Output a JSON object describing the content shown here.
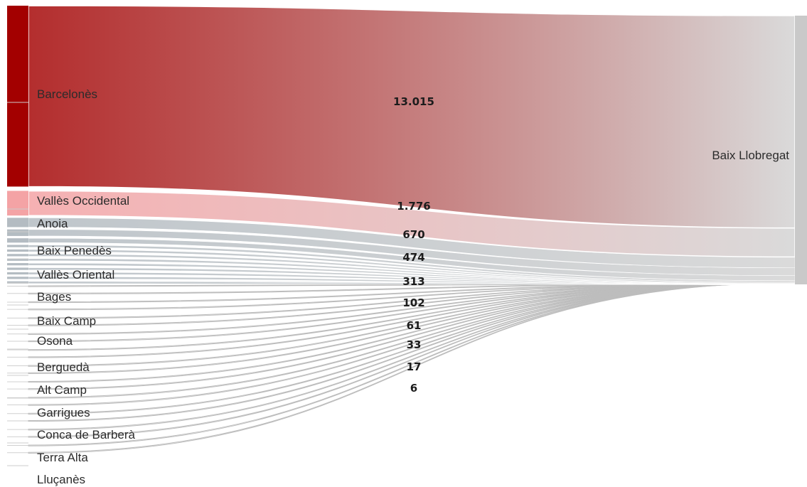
{
  "chart_data": {
    "type": "sankey",
    "target": "Baix Llobregat",
    "flows": [
      {
        "source": "Barcelonès",
        "value": 13015,
        "value_label": "13.015",
        "color": "#a30000"
      },
      {
        "source": "Vallès Occidental",
        "value": 1776,
        "value_label": "1.776",
        "color": "#f4a3a5"
      },
      {
        "source": "Anoia",
        "value": 670,
        "value_label": "670",
        "color": "#b4bcc2"
      },
      {
        "source": "Baix Penedès",
        "value": 474,
        "value_label": "474",
        "color": "#b4bcc2"
      },
      {
        "source": "Vallès Oriental",
        "value": 313,
        "value_label": "313",
        "color": "#b4bcc2"
      },
      {
        "source": "Bages",
        "value": 102,
        "value_label": "102",
        "color": "#b4bcc2"
      },
      {
        "source": "Baix Camp",
        "value": 61,
        "value_label": "61",
        "color": "#b4bcc2"
      },
      {
        "source": "Osona",
        "value": 33,
        "value_label": "33",
        "color": "#b4bcc2"
      },
      {
        "source": "Berguedà",
        "value": 17,
        "value_label": "17",
        "color": "#b4bcc2"
      },
      {
        "source": "Alt Camp",
        "value": 6,
        "value_label": "6",
        "color": "#b4bcc2"
      },
      {
        "source": "Garrigues",
        "value": 3,
        "value_label": "",
        "color": "#b4bcc2"
      },
      {
        "source": "Conca de Barberà",
        "value": 2,
        "value_label": "",
        "color": "#b4bcc2"
      },
      {
        "source": "Terra Alta",
        "value": 1,
        "value_label": "",
        "color": "#b4bcc2"
      },
      {
        "source": "Lluçanès",
        "value": 1,
        "value_label": "",
        "color": "#b4bcc2"
      }
    ],
    "unlabeled_minor_flow_count": 22,
    "colors": {
      "target_node": "#c9c9c9",
      "link_end": "#d8d8d8",
      "thin_link": "#bdbdbd"
    }
  }
}
